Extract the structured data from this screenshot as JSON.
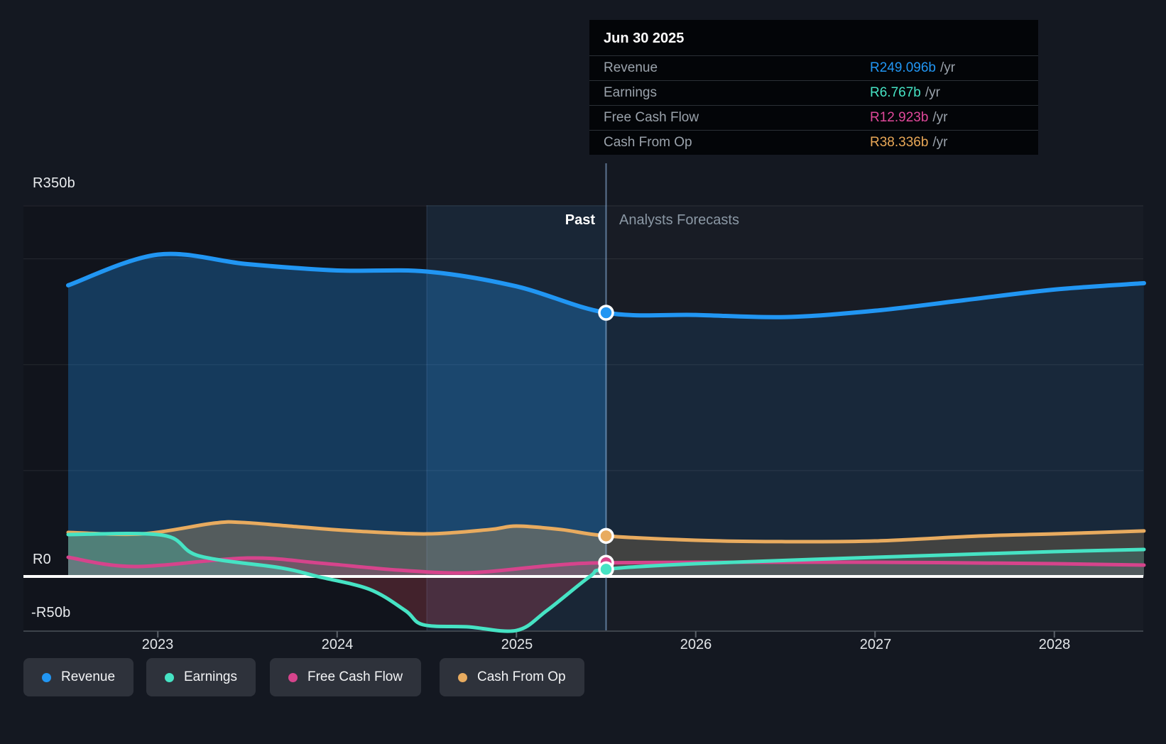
{
  "header": {
    "past_label": "Past",
    "forecast_label": "Analysts Forecasts"
  },
  "tooltip": {
    "date": "Jun 30 2025",
    "rows": [
      {
        "label": "Revenue",
        "value": "R249.096b",
        "suffix": "/yr",
        "color": "#2196f3"
      },
      {
        "label": "Earnings",
        "value": "R6.767b",
        "suffix": "/yr",
        "color": "#46e3c4"
      },
      {
        "label": "Free Cash Flow",
        "value": "R12.923b",
        "suffix": "/yr",
        "color": "#e0489a"
      },
      {
        "label": "Cash From Op",
        "value": "R38.336b",
        "suffix": "/yr",
        "color": "#e9a857"
      }
    ]
  },
  "y_axis": {
    "labels": [
      {
        "text": "R350b",
        "value_billions": 350
      },
      {
        "text": "R0",
        "value_billions": 0
      },
      {
        "text": "-R50b",
        "value_billions": -50
      }
    ]
  },
  "x_axis": {
    "labels": [
      "2023",
      "2024",
      "2025",
      "2026",
      "2027",
      "2028"
    ]
  },
  "legend": {
    "items": [
      {
        "label": "Revenue",
        "color": "#2196f3"
      },
      {
        "label": "Earnings",
        "color": "#46e3c4"
      },
      {
        "label": "Free Cash Flow",
        "color": "#d6448c"
      },
      {
        "label": "Cash From Op",
        "color": "#e8ab5f"
      }
    ]
  },
  "chart_data": {
    "type": "area",
    "title": "Revenue & Earnings history and analyst forecasts (R billions per year)",
    "x_unit": "calendar year",
    "x_domain": [
      2022.5,
      2028.5
    ],
    "x_ticks": [
      2023,
      2024,
      2025,
      2026,
      2027,
      2028
    ],
    "ylim_billions": [
      -51.6,
      360
    ],
    "gridlines_billions": [
      350,
      300,
      200,
      100
    ],
    "zero_line_billions": 0,
    "bottom_line_billions": -51.6,
    "today_divider_x": 2025.5,
    "last12m_band_x": [
      2024.5,
      2025.5
    ],
    "legend_position": "bottom-left",
    "series": [
      {
        "name": "Revenue",
        "color": "#2196f3",
        "stroke_width": 6,
        "fill_past": "rgba(33,150,243,0.30)",
        "fill_future": "rgba(33,150,243,0.10)",
        "points": [
          [
            2022.5,
            275
          ],
          [
            2023.0,
            304
          ],
          [
            2023.5,
            295
          ],
          [
            2024.0,
            289
          ],
          [
            2024.5,
            288
          ],
          [
            2025.0,
            274
          ],
          [
            2025.5,
            249.096
          ],
          [
            2026.0,
            247
          ],
          [
            2026.5,
            245
          ],
          [
            2027.0,
            251
          ],
          [
            2027.5,
            261
          ],
          [
            2028.0,
            271
          ],
          [
            2028.5,
            277
          ]
        ]
      },
      {
        "name": "Cash From Op",
        "color": "#e8ab5f",
        "stroke_width": 5,
        "fill_past": "rgba(232,171,95,0.30)",
        "fill_future": "rgba(232,171,95,0.20)",
        "points": [
          [
            2022.5,
            41.6
          ],
          [
            2022.91,
            40.2
          ],
          [
            2023.31,
            50.3
          ],
          [
            2023.47,
            51.0
          ],
          [
            2023.78,
            46.9
          ],
          [
            2024.1,
            42.9
          ],
          [
            2024.5,
            40.2
          ],
          [
            2024.85,
            44.3
          ],
          [
            2025.0,
            47.6
          ],
          [
            2025.25,
            44.3
          ],
          [
            2025.5,
            38.336
          ],
          [
            2026.0,
            34.2
          ],
          [
            2026.48,
            32.9
          ],
          [
            2027.0,
            33.5
          ],
          [
            2027.58,
            38.2
          ],
          [
            2028.0,
            40.2
          ],
          [
            2028.5,
            43.0
          ]
        ]
      },
      {
        "name": "Free Cash Flow",
        "color": "#d6448c",
        "stroke_width": 5,
        "fill_past": "rgba(214,68,140,0.20)",
        "fill_future": "rgba(214,68,140,0.14)",
        "points": [
          [
            2022.5,
            18.1
          ],
          [
            2022.87,
            9.4
          ],
          [
            2023.5,
            17.4
          ],
          [
            2023.9,
            12.7
          ],
          [
            2024.34,
            6.0
          ],
          [
            2024.73,
            3.4
          ],
          [
            2025.13,
            9.4
          ],
          [
            2025.33,
            12.1
          ],
          [
            2025.5,
            12.923
          ],
          [
            2026.0,
            13.4
          ],
          [
            2027.0,
            13.4
          ],
          [
            2028.0,
            12.1
          ],
          [
            2028.5,
            10.7
          ]
        ]
      },
      {
        "name": "Earnings",
        "color": "#46e3c4",
        "stroke_width": 5,
        "fill_past": "rgba(70,227,196,0.26)",
        "fill_future": "rgba(70,227,196,0.16)",
        "fill_negative": "rgba(226,78,96,0.24)",
        "points": [
          [
            2022.5,
            39.6
          ],
          [
            2023.03,
            38.9
          ],
          [
            2023.23,
            19.4
          ],
          [
            2023.69,
            8.0
          ],
          [
            2023.89,
            0
          ],
          [
            2024.18,
            -12.1
          ],
          [
            2024.38,
            -32.2
          ],
          [
            2024.48,
            -45.6
          ],
          [
            2024.73,
            -47.6
          ],
          [
            2025.0,
            -51.0
          ],
          [
            2025.17,
            -32.2
          ],
          [
            2025.41,
            0
          ],
          [
            2025.5,
            6.767
          ],
          [
            2026.0,
            12.1
          ],
          [
            2027.0,
            18.1
          ],
          [
            2028.0,
            23.5
          ],
          [
            2028.5,
            25.5
          ]
        ]
      }
    ],
    "marker_x": 2025.5,
    "marker_values_billions": {
      "Revenue": 249.096,
      "Earnings": 6.767,
      "Free Cash Flow": 12.923,
      "Cash From Op": 38.336
    }
  }
}
